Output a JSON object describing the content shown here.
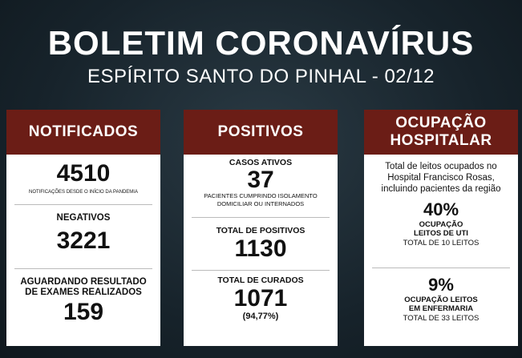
{
  "header": {
    "title": "BOLETIM CORONAVÍRUS",
    "subtitle": "ESPÍRITO SANTO DO PINHAL - 02/12"
  },
  "cards": [
    {
      "title": [
        "NOTIFICADOS"
      ],
      "sections": [
        {
          "value": "4510",
          "note": [
            "NOTIFICAÇÕES DESDE O INÍCIO DA PANDEMIA"
          ]
        },
        {
          "label": [
            "NEGATIVOS"
          ],
          "value": "3221"
        },
        {
          "label": [
            "AGUARDANDO RESULTADO",
            "DE EXAMES REALIZADOS"
          ],
          "value": "159"
        }
      ]
    },
    {
      "title": [
        "POSITIVOS"
      ],
      "sections": [
        {
          "label": [
            "CASOS ATIVOS"
          ],
          "value": "37",
          "note": [
            "PACIENTES CUMPRINDO ISOLAMENTO",
            "DOMICILIAR OU INTERNADOS"
          ]
        },
        {
          "label": [
            "TOTAL DE POSITIVOS"
          ],
          "value": "1130"
        },
        {
          "label": [
            "TOTAL DE CURADOS"
          ],
          "value": "1071",
          "note": [
            "(94,77%)"
          ]
        }
      ]
    },
    {
      "title": [
        "OCUPAÇÃO",
        "HOSPITALAR"
      ],
      "intro": [
        "Total de leitos ocupados no",
        "Hospital Francisco Rosas,",
        "incluindo pacientes da região"
      ],
      "sections": [
        {
          "value": "40%",
          "label": [
            "OCUPAÇÃO",
            "LEITOS DE UTI"
          ],
          "note": [
            "TOTAL DE 10 LEITOS"
          ]
        },
        {
          "value": "9%",
          "label": [
            "OCUPAÇÃO LEITOS",
            "EM ENFERMARIA"
          ],
          "note": [
            "TOTAL DE 33 LEITOS"
          ]
        }
      ]
    }
  ]
}
